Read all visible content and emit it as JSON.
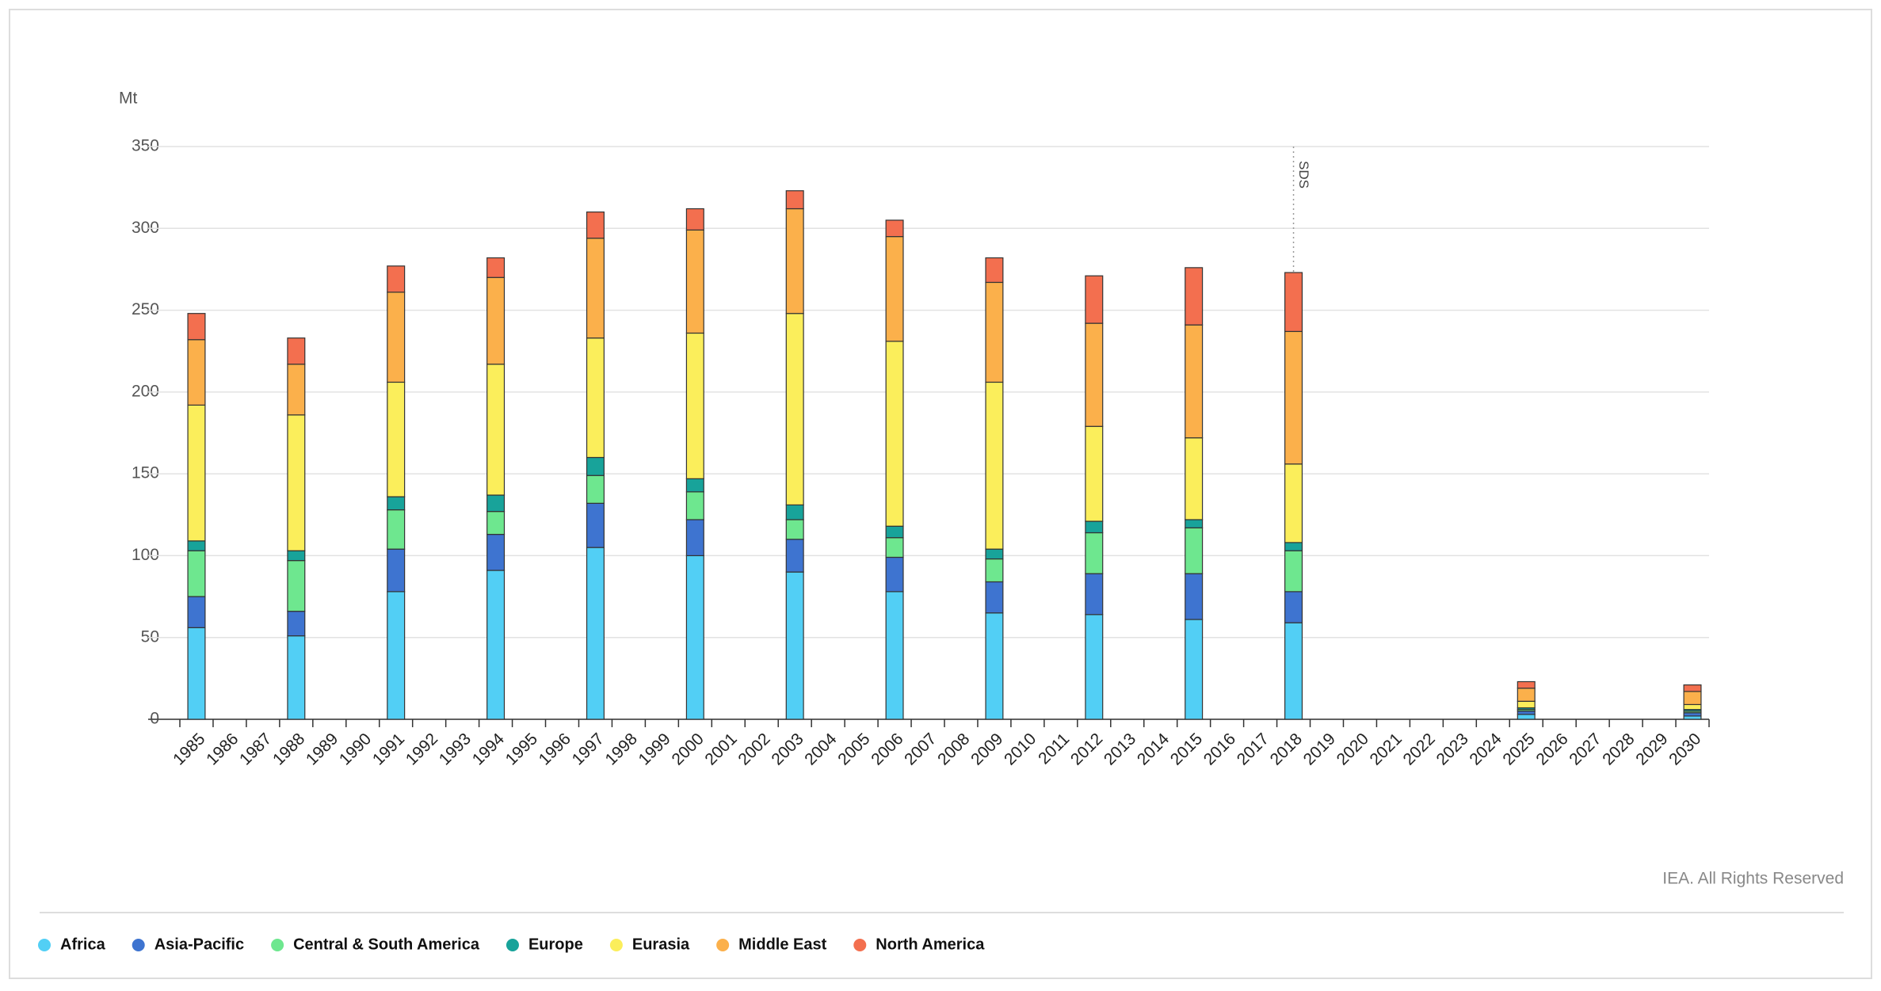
{
  "chart_data": {
    "type": "stacked_bar",
    "y_label": "Mt",
    "source": "IEA. All Rights Reserved",
    "annotation": {
      "text": "SDS",
      "x": "2018"
    },
    "categories": [
      "1985",
      "1986",
      "1987",
      "1988",
      "1989",
      "1990",
      "1991",
      "1992",
      "1993",
      "1994",
      "1995",
      "1996",
      "1997",
      "1998",
      "1999",
      "2000",
      "2001",
      "2002",
      "2003",
      "2004",
      "2005",
      "2006",
      "2007",
      "2008",
      "2009",
      "2010",
      "2011",
      "2012",
      "2013",
      "2014",
      "2015",
      "2016",
      "2017",
      "2018",
      "2019",
      "2020",
      "2021",
      "2022",
      "2023",
      "2024",
      "2025",
      "2026",
      "2027",
      "2028",
      "2029",
      "2030"
    ],
    "ylim": [
      0,
      350
    ],
    "yticks": [
      0,
      50,
      100,
      150,
      200,
      250,
      300,
      350
    ],
    "grid": true,
    "series": [
      {
        "name": "Africa",
        "color": "#52cff5",
        "values": [
          56,
          null,
          null,
          51,
          null,
          null,
          78,
          null,
          null,
          91,
          null,
          null,
          105,
          null,
          null,
          100,
          null,
          null,
          90,
          null,
          null,
          78,
          null,
          null,
          65,
          null,
          null,
          64,
          null,
          null,
          61,
          null,
          null,
          59,
          null,
          null,
          null,
          null,
          null,
          null,
          3,
          null,
          null,
          null,
          null,
          2
        ]
      },
      {
        "name": "Asia-Pacific",
        "color": "#3e74d0",
        "values": [
          19,
          null,
          null,
          15,
          null,
          null,
          26,
          null,
          null,
          22,
          null,
          null,
          27,
          null,
          null,
          22,
          null,
          null,
          20,
          null,
          null,
          21,
          null,
          null,
          19,
          null,
          null,
          25,
          null,
          null,
          28,
          null,
          null,
          19,
          null,
          null,
          null,
          null,
          null,
          null,
          2,
          null,
          null,
          null,
          null,
          2
        ]
      },
      {
        "name": "Central & South America",
        "color": "#6ee78f",
        "values": [
          28,
          null,
          null,
          31,
          null,
          null,
          24,
          null,
          null,
          14,
          null,
          null,
          17,
          null,
          null,
          17,
          null,
          null,
          12,
          null,
          null,
          12,
          null,
          null,
          14,
          null,
          null,
          25,
          null,
          null,
          28,
          null,
          null,
          25,
          null,
          null,
          null,
          null,
          null,
          null,
          1,
          null,
          null,
          null,
          null,
          1
        ]
      },
      {
        "name": "Europe",
        "color": "#18a39a",
        "values": [
          6,
          null,
          null,
          6,
          null,
          null,
          8,
          null,
          null,
          10,
          null,
          null,
          11,
          null,
          null,
          8,
          null,
          null,
          9,
          null,
          null,
          7,
          null,
          null,
          6,
          null,
          null,
          7,
          null,
          null,
          5,
          null,
          null,
          5,
          null,
          null,
          null,
          null,
          null,
          null,
          1,
          null,
          null,
          null,
          null,
          1
        ]
      },
      {
        "name": "Eurasia",
        "color": "#fbee5b",
        "values": [
          83,
          null,
          null,
          83,
          null,
          null,
          70,
          null,
          null,
          80,
          null,
          null,
          73,
          null,
          null,
          89,
          null,
          null,
          117,
          null,
          null,
          113,
          null,
          null,
          102,
          null,
          null,
          58,
          null,
          null,
          50,
          null,
          null,
          48,
          null,
          null,
          null,
          null,
          null,
          null,
          4,
          null,
          null,
          null,
          null,
          3
        ]
      },
      {
        "name": "Middle East",
        "color": "#fbb04b",
        "values": [
          40,
          null,
          null,
          31,
          null,
          null,
          55,
          null,
          null,
          53,
          null,
          null,
          61,
          null,
          null,
          63,
          null,
          null,
          64,
          null,
          null,
          64,
          null,
          null,
          61,
          null,
          null,
          63,
          null,
          null,
          69,
          null,
          null,
          81,
          null,
          null,
          null,
          null,
          null,
          null,
          8,
          null,
          null,
          null,
          null,
          8
        ]
      },
      {
        "name": "North America",
        "color": "#f36f4f",
        "values": [
          16,
          null,
          null,
          16,
          null,
          null,
          16,
          null,
          null,
          12,
          null,
          null,
          16,
          null,
          null,
          13,
          null,
          null,
          11,
          null,
          null,
          10,
          null,
          null,
          15,
          null,
          null,
          29,
          null,
          null,
          35,
          null,
          null,
          36,
          null,
          null,
          null,
          null,
          null,
          null,
          4,
          null,
          null,
          null,
          null,
          4
        ]
      }
    ]
  }
}
